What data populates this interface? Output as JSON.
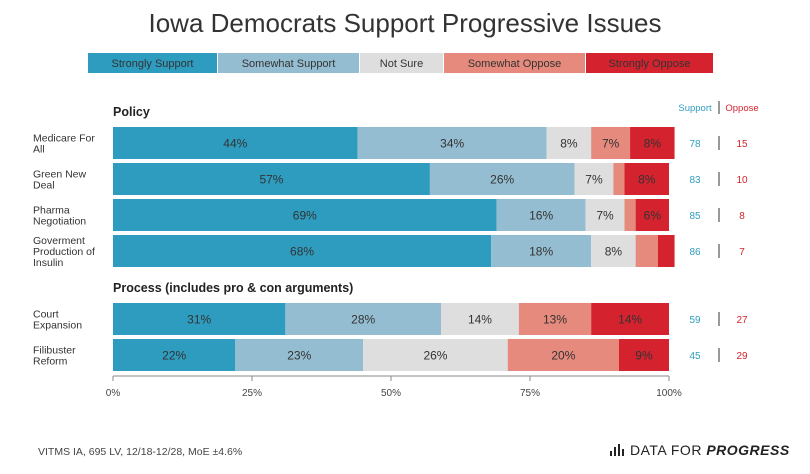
{
  "title": "Iowa Democrats Support Progressive Issues",
  "legend": [
    {
      "label": "Strongly Support",
      "color": "#2E9CBF"
    },
    {
      "label": "Somewhat Support",
      "color": "#95BDD1"
    },
    {
      "label": "Not Sure",
      "color": "#DEDEDE"
    },
    {
      "label": "Somewhat Oppose",
      "color": "#E58A7C"
    },
    {
      "label": "Strongly Oppose",
      "color": "#D4232E"
    }
  ],
  "support_header": "Support",
  "oppose_header": "Oppose",
  "footer_note": "VITMS IA, 695 LV, 12/18-12/28, MoE ±4.6%",
  "brand": {
    "prefix": "DATA FOR ",
    "emphasis": "PROGRESS",
    "icon": "bar-chart-icon"
  },
  "chart_data": {
    "type": "bar",
    "orientation": "horizontal",
    "stacked": true,
    "xlim": [
      0,
      100
    ],
    "x_ticks": [
      "0%",
      "25%",
      "50%",
      "75%",
      "100%"
    ],
    "series_names": [
      "Strongly Support",
      "Somewhat Support",
      "Not Sure",
      "Somewhat Oppose",
      "Strongly Oppose"
    ],
    "groups": [
      {
        "title": "Policy",
        "rows": [
          {
            "lines": [
              "Medicare For",
              "All"
            ],
            "values": [
              44,
              34,
              8,
              7,
              8
            ],
            "labels": [
              "44%",
              "34%",
              "8%",
              "7%",
              "8%"
            ],
            "support": "78",
            "oppose": "15"
          },
          {
            "lines": [
              "Green New",
              "Deal"
            ],
            "values": [
              57,
              26,
              7,
              2,
              8
            ],
            "labels": [
              "57%",
              "26%",
              "7%",
              "",
              "8%"
            ],
            "support": "83",
            "oppose": "10"
          },
          {
            "lines": [
              "Pharma",
              "Negotiation"
            ],
            "values": [
              69,
              16,
              7,
              2,
              6
            ],
            "labels": [
              "69%",
              "16%",
              "7%",
              "",
              "6%"
            ],
            "support": "85",
            "oppose": "8"
          },
          {
            "lines": [
              "Goverment",
              "Production of",
              "Insulin"
            ],
            "values": [
              68,
              18,
              8,
              4,
              3
            ],
            "labels": [
              "68%",
              "18%",
              "8%",
              "",
              ""
            ],
            "support": "86",
            "oppose": "7"
          }
        ]
      },
      {
        "title": "Process (includes pro & con arguments)",
        "rows": [
          {
            "lines": [
              "Court",
              "Expansion"
            ],
            "values": [
              31,
              28,
              14,
              13,
              14
            ],
            "labels": [
              "31%",
              "28%",
              "14%",
              "13%",
              "14%"
            ],
            "support": "59",
            "oppose": "27"
          },
          {
            "lines": [
              "Filibuster",
              "Reform"
            ],
            "values": [
              22,
              23,
              26,
              20,
              9
            ],
            "labels": [
              "22%",
              "23%",
              "26%",
              "20%",
              "9%"
            ],
            "support": "45",
            "oppose": "29"
          }
        ]
      }
    ]
  }
}
